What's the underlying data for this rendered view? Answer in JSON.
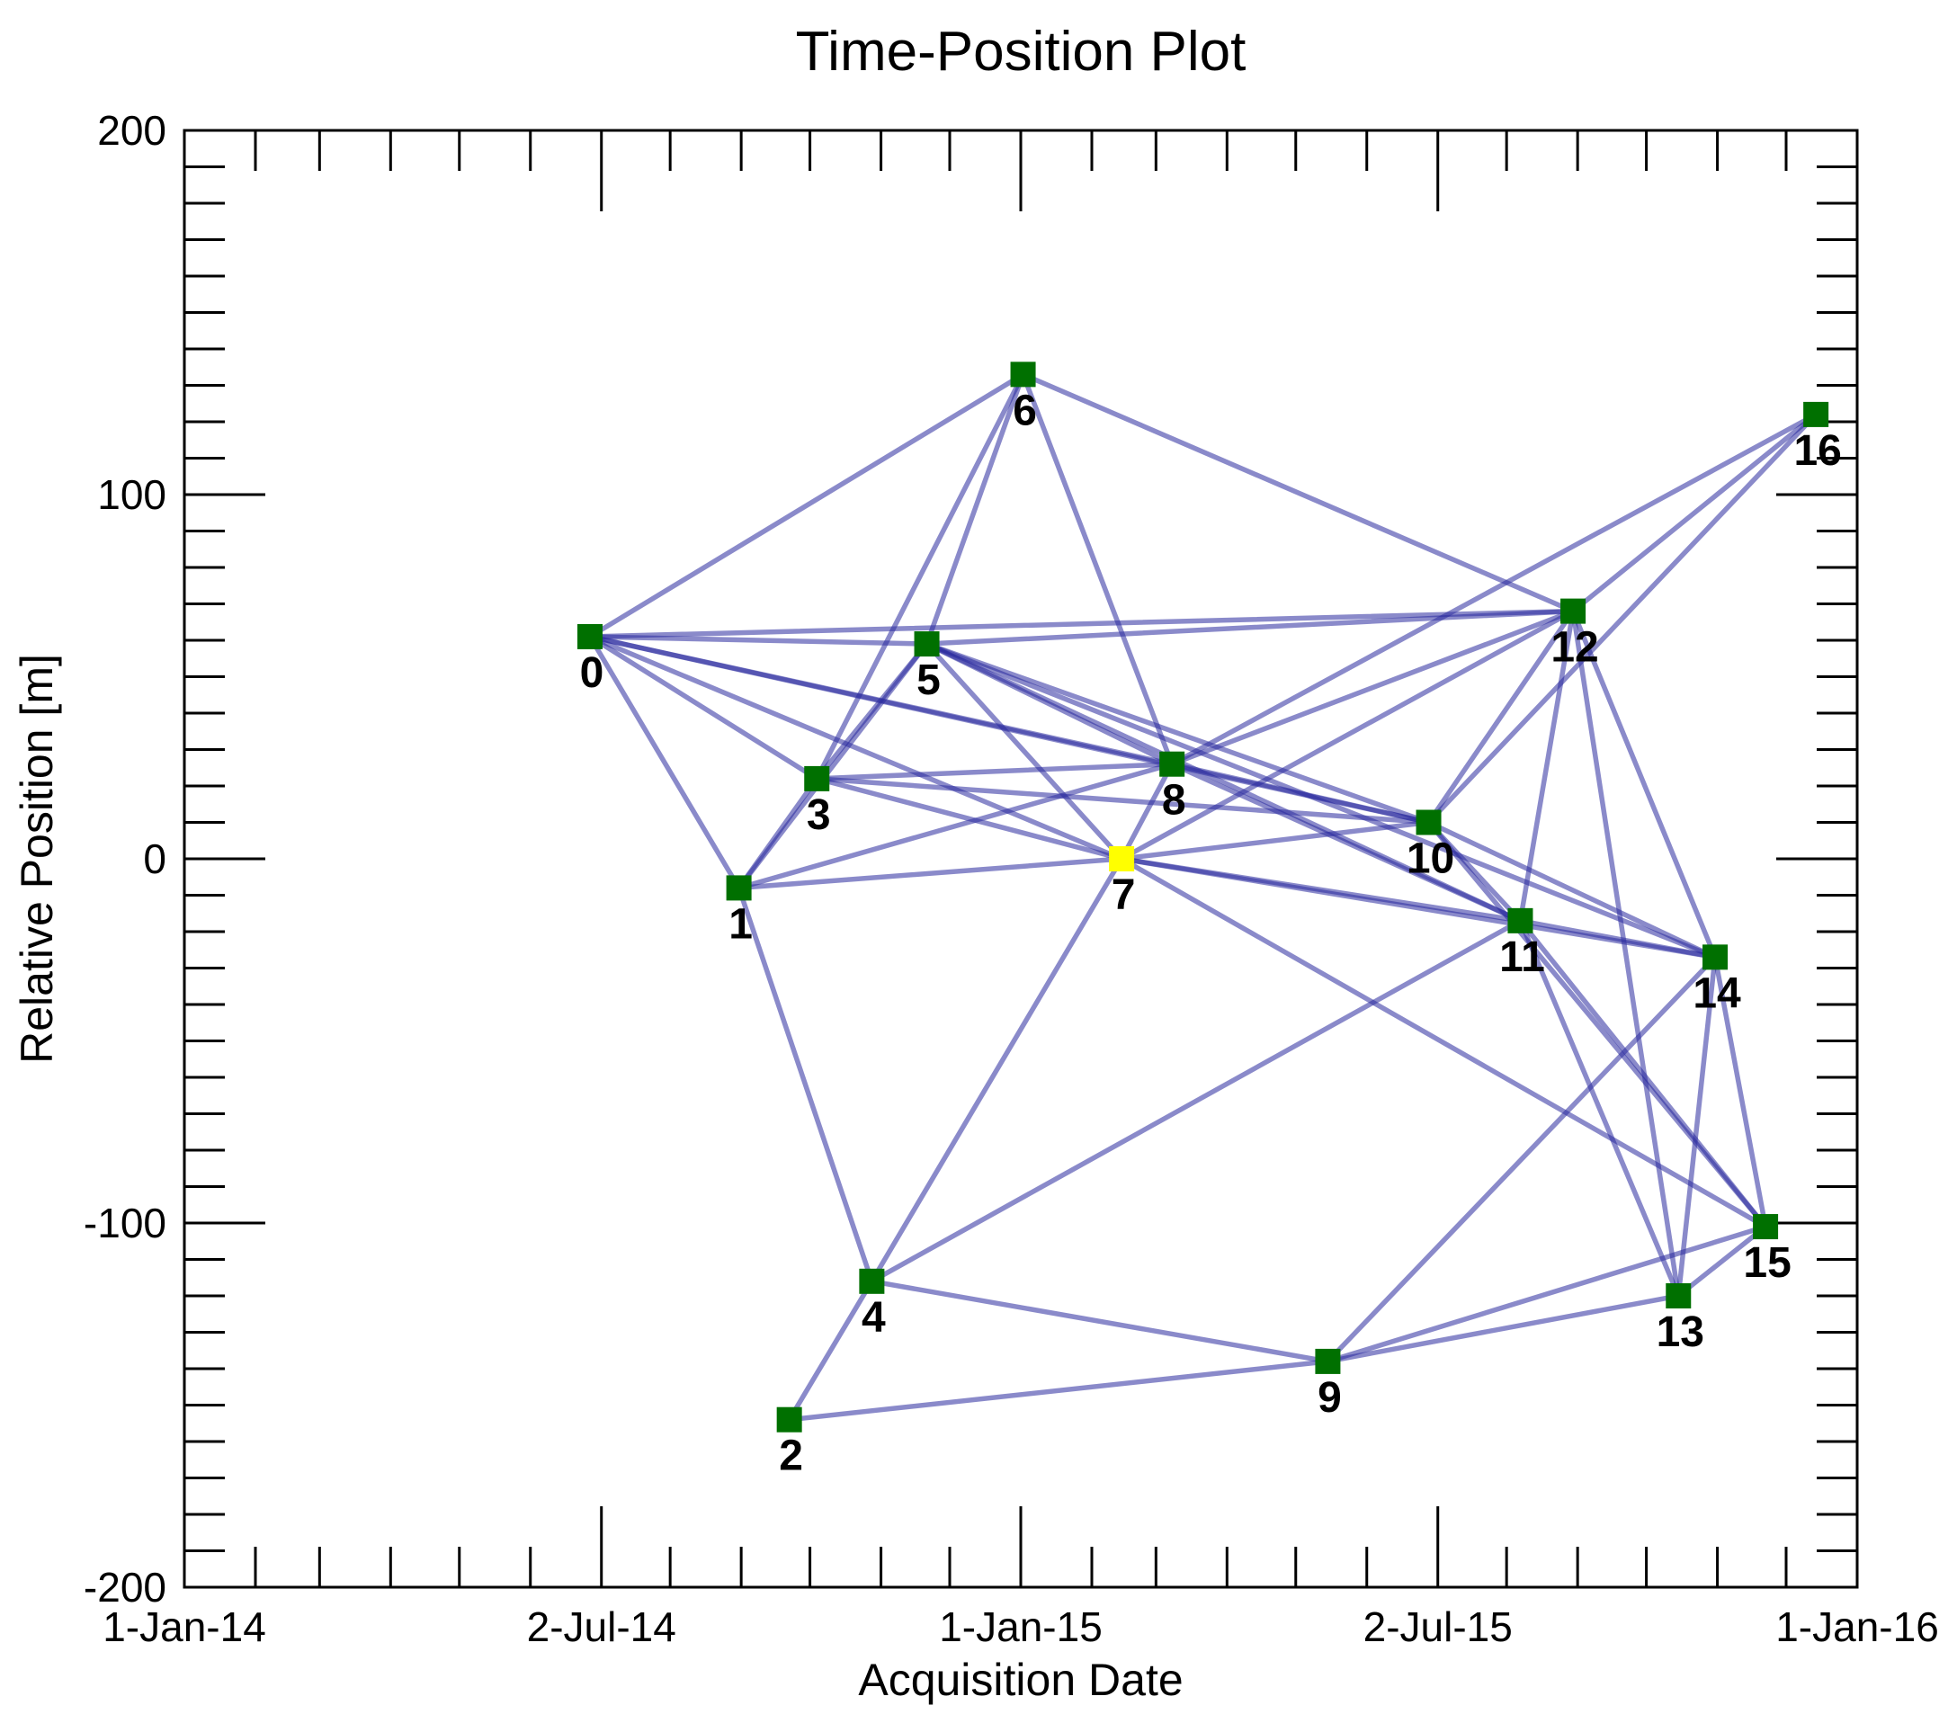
{
  "chart_data": {
    "type": "scatter",
    "title": "Time-Position Plot",
    "xlabel": "Acquisition Date",
    "ylabel": "Relative Position [m]",
    "xlim": [
      "2014-01-01",
      "2016-01-01"
    ],
    "ylim": [
      -200,
      200
    ],
    "x_ticks": [
      {
        "date": "2014-01-01",
        "label": "1-Jan-14"
      },
      {
        "date": "2014-07-02",
        "label": "2-Jul-14"
      },
      {
        "date": "2015-01-01",
        "label": "1-Jan-15"
      },
      {
        "date": "2015-07-02",
        "label": "2-Jul-15"
      },
      {
        "date": "2016-01-01",
        "label": "1-Jan-16"
      }
    ],
    "y_ticks": [
      {
        "value": 200,
        "label": "200"
      },
      {
        "value": 100,
        "label": "100"
      },
      {
        "value": 0,
        "label": "0"
      },
      {
        "value": -100,
        "label": "-100"
      },
      {
        "value": -200,
        "label": "-200"
      }
    ],
    "grid": false,
    "node_color": "#007000",
    "master_color": "#ffff00",
    "edge_color": "#2a2a9e",
    "points": [
      {
        "label": "0",
        "date": "2014-06-27",
        "y": 61
      },
      {
        "label": "1",
        "date": "2014-08-31",
        "y": -8
      },
      {
        "label": "2",
        "date": "2014-09-22",
        "y": -154
      },
      {
        "label": "3",
        "date": "2014-10-04",
        "y": 22
      },
      {
        "label": "4",
        "date": "2014-10-28",
        "y": -116
      },
      {
        "label": "5",
        "date": "2014-11-21",
        "y": 59
      },
      {
        "label": "6",
        "date": "2015-01-02",
        "y": 133
      },
      {
        "label": "7",
        "date": "2015-02-14",
        "y": 0,
        "master": true
      },
      {
        "label": "8",
        "date": "2015-03-08",
        "y": 26
      },
      {
        "label": "9",
        "date": "2015-05-15",
        "y": -138
      },
      {
        "label": "10",
        "date": "2015-06-28",
        "y": 10
      },
      {
        "label": "11",
        "date": "2015-08-07",
        "y": -17
      },
      {
        "label": "12",
        "date": "2015-08-30",
        "y": 68
      },
      {
        "label": "13",
        "date": "2015-10-15",
        "y": -120
      },
      {
        "label": "14",
        "date": "2015-10-31",
        "y": -27
      },
      {
        "label": "15",
        "date": "2015-11-22",
        "y": -101
      },
      {
        "label": "16",
        "date": "2015-12-14",
        "y": 122
      }
    ],
    "edges": [
      [
        0,
        1
      ],
      [
        0,
        3
      ],
      [
        0,
        5
      ],
      [
        0,
        6
      ],
      [
        0,
        7
      ],
      [
        0,
        8
      ],
      [
        0,
        10
      ],
      [
        0,
        12
      ],
      [
        1,
        3
      ],
      [
        1,
        4
      ],
      [
        1,
        5
      ],
      [
        1,
        7
      ],
      [
        1,
        8
      ],
      [
        2,
        4
      ],
      [
        2,
        9
      ],
      [
        3,
        5
      ],
      [
        3,
        6
      ],
      [
        3,
        7
      ],
      [
        3,
        8
      ],
      [
        3,
        10
      ],
      [
        4,
        7
      ],
      [
        4,
        9
      ],
      [
        4,
        11
      ],
      [
        5,
        6
      ],
      [
        5,
        7
      ],
      [
        5,
        8
      ],
      [
        5,
        10
      ],
      [
        5,
        11
      ],
      [
        5,
        12
      ],
      [
        5,
        14
      ],
      [
        6,
        8
      ],
      [
        6,
        12
      ],
      [
        7,
        8
      ],
      [
        7,
        10
      ],
      [
        7,
        11
      ],
      [
        7,
        12
      ],
      [
        7,
        14
      ],
      [
        7,
        15
      ],
      [
        8,
        10
      ],
      [
        8,
        11
      ],
      [
        8,
        12
      ],
      [
        8,
        16
      ],
      [
        9,
        13
      ],
      [
        9,
        14
      ],
      [
        9,
        15
      ],
      [
        10,
        11
      ],
      [
        10,
        12
      ],
      [
        10,
        14
      ],
      [
        10,
        15
      ],
      [
        10,
        16
      ],
      [
        11,
        12
      ],
      [
        11,
        13
      ],
      [
        11,
        14
      ],
      [
        11,
        15
      ],
      [
        12,
        13
      ],
      [
        12,
        14
      ],
      [
        12,
        16
      ],
      [
        13,
        14
      ],
      [
        13,
        15
      ],
      [
        14,
        15
      ]
    ]
  }
}
